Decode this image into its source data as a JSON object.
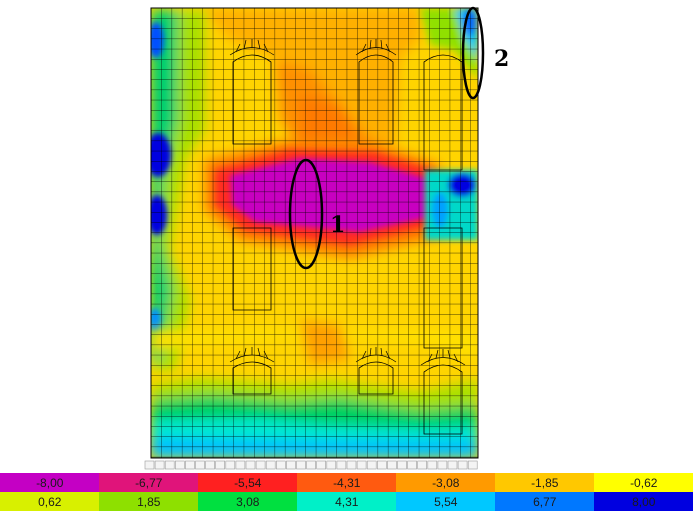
{
  "annotations": [
    "1",
    "2"
  ],
  "legend": {
    "negative": [
      {
        "label": "-8,00",
        "color": "#c400c4"
      },
      {
        "label": "-6,77",
        "color": "#e0147a"
      },
      {
        "label": "-5,54",
        "color": "#ff2020"
      },
      {
        "label": "-4,31",
        "color": "#ff5a10"
      },
      {
        "label": "-3,08",
        "color": "#ff9a00"
      },
      {
        "label": "-1,85",
        "color": "#ffc800"
      },
      {
        "label": "-0,62",
        "color": "#ffff00"
      }
    ],
    "positive": [
      {
        "label": "0,62",
        "color": "#d8f000"
      },
      {
        "label": "1,85",
        "color": "#8ee000"
      },
      {
        "label": "3,08",
        "color": "#00e040"
      },
      {
        "label": "4,31",
        "color": "#00f0c8"
      },
      {
        "label": "5,54",
        "color": "#00c8ff"
      },
      {
        "label": "6,77",
        "color": "#0078ff"
      },
      {
        "label": "8,00",
        "color": "#0000e0"
      }
    ]
  },
  "colors": {
    "base_yellow": "#ffd400",
    "mesh_line": "#000000",
    "opening_fill": "#ffffff"
  }
}
